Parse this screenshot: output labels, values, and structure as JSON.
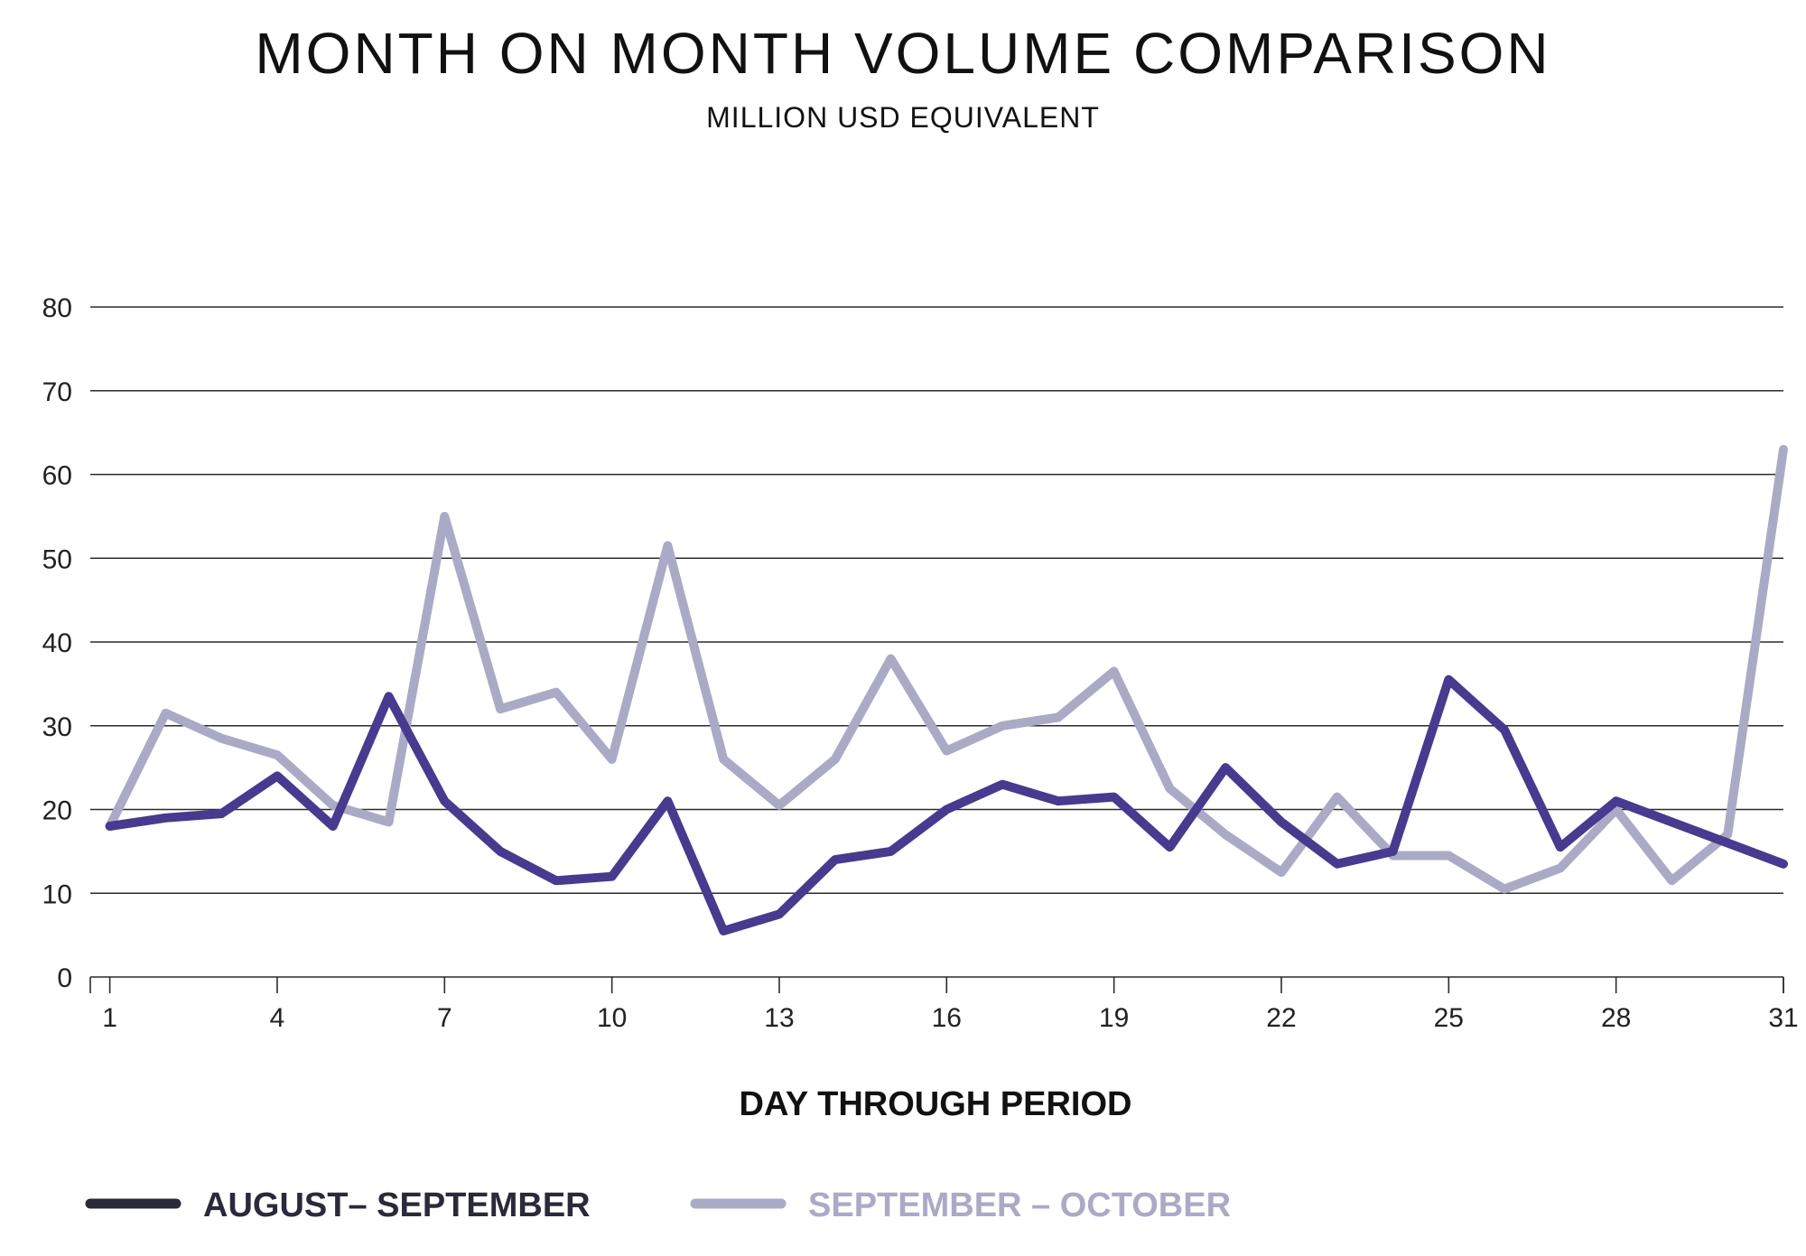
{
  "chart_data": {
    "type": "line",
    "title": "MONTH ON MONTH VOLUME COMPARISON",
    "subtitle": "MILLION USD EQUIVALENT",
    "xlabel": "DAY THROUGH PERIOD",
    "ylabel": "",
    "ylim": [
      0,
      80
    ],
    "xlim": [
      0.65,
      31
    ],
    "yticks": [
      0,
      10,
      20,
      30,
      40,
      50,
      60,
      70,
      80
    ],
    "xticks": [
      1,
      4,
      7,
      10,
      13,
      16,
      19,
      22,
      25,
      28,
      31
    ],
    "grid": true,
    "legend_position": "bottom",
    "x": [
      1,
      2,
      3,
      4,
      5,
      6,
      7,
      8,
      9,
      10,
      11,
      12,
      13,
      14,
      15,
      16,
      17,
      18,
      19,
      20,
      21,
      22,
      23,
      24,
      25,
      26,
      27,
      28,
      29,
      30,
      31
    ],
    "series": [
      {
        "name": "AUGUST– SEPTEMBER",
        "color": "#473a8f",
        "legend_color": "#2a2a3a",
        "values": [
          18,
          19,
          19.5,
          24,
          18,
          33.5,
          21,
          15,
          11.5,
          12,
          21,
          5.5,
          7.5,
          14,
          15,
          20,
          23,
          21,
          21.5,
          15.5,
          25,
          18.5,
          13.5,
          15,
          35.5,
          29.5,
          15.5,
          21,
          18.5,
          16,
          13.5
        ]
      },
      {
        "name": "SEPTEMBER – OCTOBER",
        "color": "#abaac6",
        "legend_color": "#abaac6",
        "values": [
          18,
          31.5,
          28.5,
          26.5,
          20.5,
          18.5,
          55,
          32,
          34,
          26,
          51.5,
          26,
          20.5,
          26,
          38,
          27,
          30,
          31,
          36.5,
          22.5,
          17,
          12.5,
          21.5,
          14.5,
          14.5,
          10.5,
          13,
          20,
          11.5,
          17,
          63
        ]
      }
    ]
  }
}
